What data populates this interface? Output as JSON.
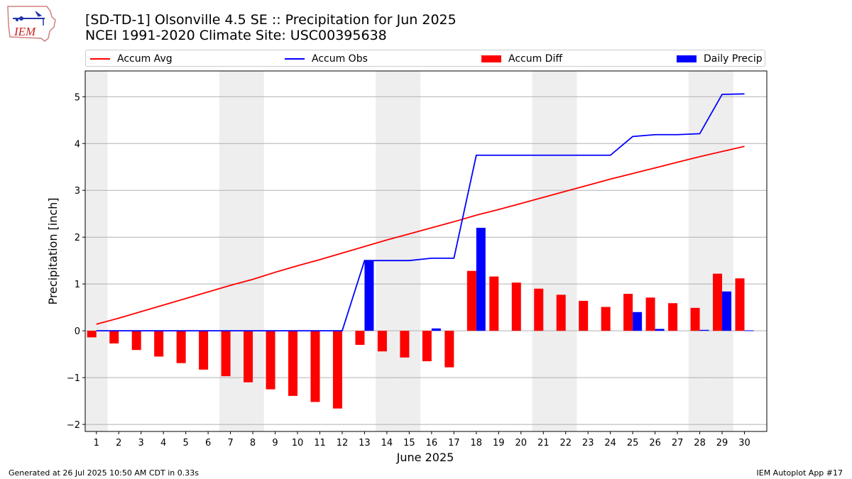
{
  "header": {
    "title_line1": "[SD-TD-1] Olsonville 4.5 SE :: Precipitation for Jun 2025",
    "title_line2": "NCEI 1991-2020 Climate Site: USC00395638",
    "logo_text": "IEM"
  },
  "footer": {
    "left": "Generated at 26 Jul 2025 10:50 AM CDT in 0.33s",
    "right": "IEM Autoplot App #17"
  },
  "colors": {
    "accum_avg": "#ff0000",
    "accum_obs": "#0000ff",
    "accum_diff": "#ff0000",
    "daily_precip": "#0000ff",
    "weekend_shade": "#eeeeee",
    "grid": "#b0b0b0"
  },
  "chart_data": {
    "type": "bar",
    "xlabel": "June 2025",
    "ylabel": "Precipitation [inch]",
    "ylim": [
      -2.15,
      5.55
    ],
    "yticks": [
      -2,
      -1,
      0,
      1,
      2,
      3,
      4,
      5
    ],
    "ytick_labels": [
      "−2",
      "−1",
      "0",
      "1",
      "2",
      "3",
      "4",
      "5"
    ],
    "xlim": [
      0.5,
      31
    ],
    "grid": "horizontal",
    "legend_position": "top",
    "days": [
      1,
      2,
      3,
      4,
      5,
      6,
      7,
      8,
      9,
      10,
      11,
      12,
      13,
      14,
      15,
      16,
      17,
      18,
      19,
      20,
      21,
      22,
      23,
      24,
      25,
      26,
      27,
      28,
      29,
      30
    ],
    "shaded_days": [
      1,
      7,
      8,
      14,
      15,
      21,
      22,
      28,
      29
    ],
    "series": [
      {
        "name": "Accum Avg",
        "kind": "line",
        "values": [
          0.14,
          0.27,
          0.41,
          0.55,
          0.69,
          0.83,
          0.97,
          1.1,
          1.25,
          1.39,
          1.52,
          1.66,
          1.8,
          1.94,
          2.07,
          2.2,
          2.33,
          2.47,
          2.59,
          2.72,
          2.85,
          2.98,
          3.11,
          3.24,
          3.36,
          3.48,
          3.6,
          3.72,
          3.83,
          3.94
        ]
      },
      {
        "name": "Accum Obs",
        "kind": "line",
        "values": [
          0,
          0,
          0,
          0,
          0,
          0,
          0,
          0,
          0,
          0,
          0,
          0,
          1.5,
          1.5,
          1.5,
          1.55,
          1.55,
          3.75,
          3.75,
          3.75,
          3.75,
          3.75,
          3.75,
          3.75,
          4.15,
          4.19,
          4.19,
          4.21,
          5.05,
          5.06
        ]
      },
      {
        "name": "Accum Diff",
        "kind": "bar",
        "values": [
          -0.14,
          -0.27,
          -0.41,
          -0.55,
          -0.69,
          -0.83,
          -0.97,
          -1.1,
          -1.25,
          -1.39,
          -1.52,
          -1.66,
          -0.3,
          -0.44,
          -0.57,
          -0.65,
          -0.78,
          1.28,
          1.16,
          1.03,
          0.9,
          0.77,
          0.64,
          0.51,
          0.79,
          0.71,
          0.59,
          0.49,
          1.22,
          1.12
        ]
      },
      {
        "name": "Daily Precip",
        "kind": "bar",
        "values": [
          0,
          0,
          0,
          0,
          0,
          0,
          0,
          0,
          0,
          0,
          0,
          0,
          1.5,
          0,
          0,
          0.05,
          0,
          2.2,
          0,
          0,
          0,
          0,
          0,
          0,
          0.4,
          0.04,
          0,
          0.02,
          0.84,
          0.01
        ]
      }
    ]
  }
}
